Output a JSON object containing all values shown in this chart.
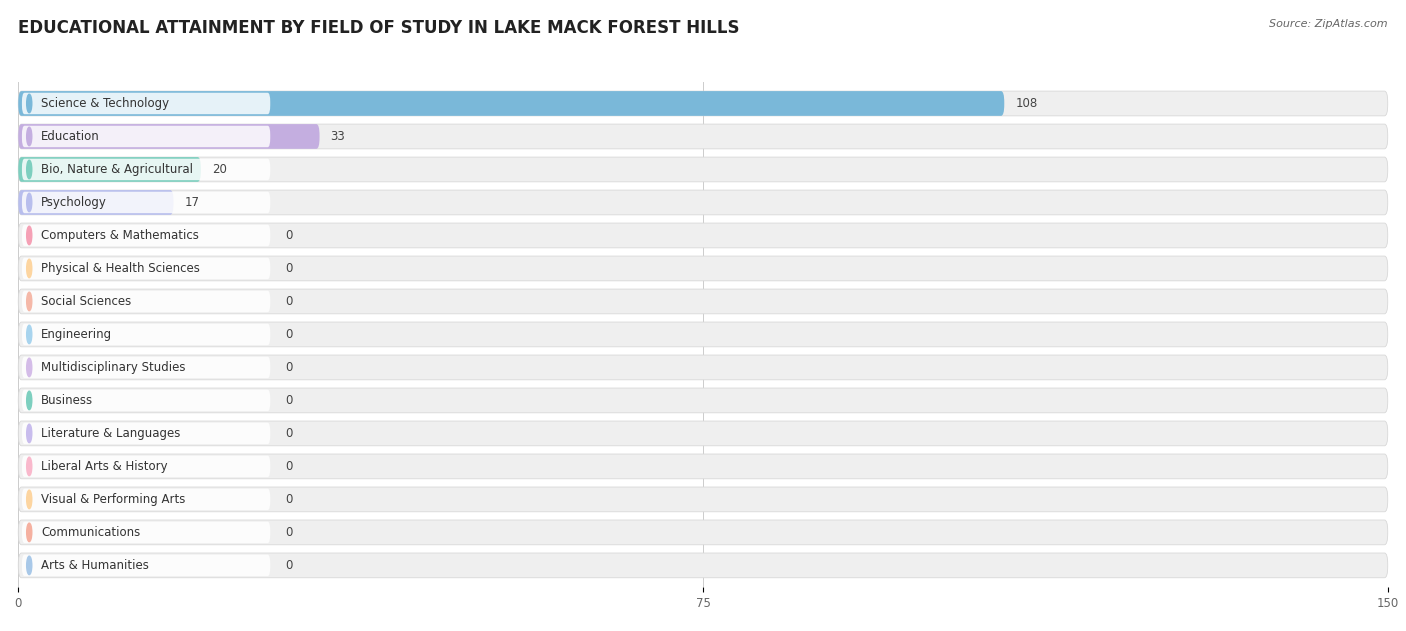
{
  "title": "EDUCATIONAL ATTAINMENT BY FIELD OF STUDY IN LAKE MACK FOREST HILLS",
  "source": "Source: ZipAtlas.com",
  "categories": [
    "Science & Technology",
    "Education",
    "Bio, Nature & Agricultural",
    "Psychology",
    "Computers & Mathematics",
    "Physical & Health Sciences",
    "Social Sciences",
    "Engineering",
    "Multidisciplinary Studies",
    "Business",
    "Literature & Languages",
    "Liberal Arts & History",
    "Visual & Performing Arts",
    "Communications",
    "Arts & Humanities"
  ],
  "values": [
    108,
    33,
    20,
    17,
    0,
    0,
    0,
    0,
    0,
    0,
    0,
    0,
    0,
    0,
    0
  ],
  "bar_colors": [
    "#7ab8d9",
    "#c4aee0",
    "#7dcfbf",
    "#b8beed",
    "#f5a0b5",
    "#fdd5a0",
    "#f5b8a8",
    "#a8d4ee",
    "#d4bce8",
    "#7dcfbf",
    "#c8bced",
    "#f9b8cc",
    "#fdd5a0",
    "#f5b0a0",
    "#a8c8e8"
  ],
  "xlim": [
    0,
    150
  ],
  "xticks": [
    0,
    75,
    150
  ],
  "background_color": "#ffffff",
  "row_bg_color": "#efefef",
  "row_alt_color": "#f8f8f8",
  "title_fontsize": 12,
  "label_fontsize": 8.5,
  "value_fontsize": 8.5,
  "bar_height": 0.75
}
